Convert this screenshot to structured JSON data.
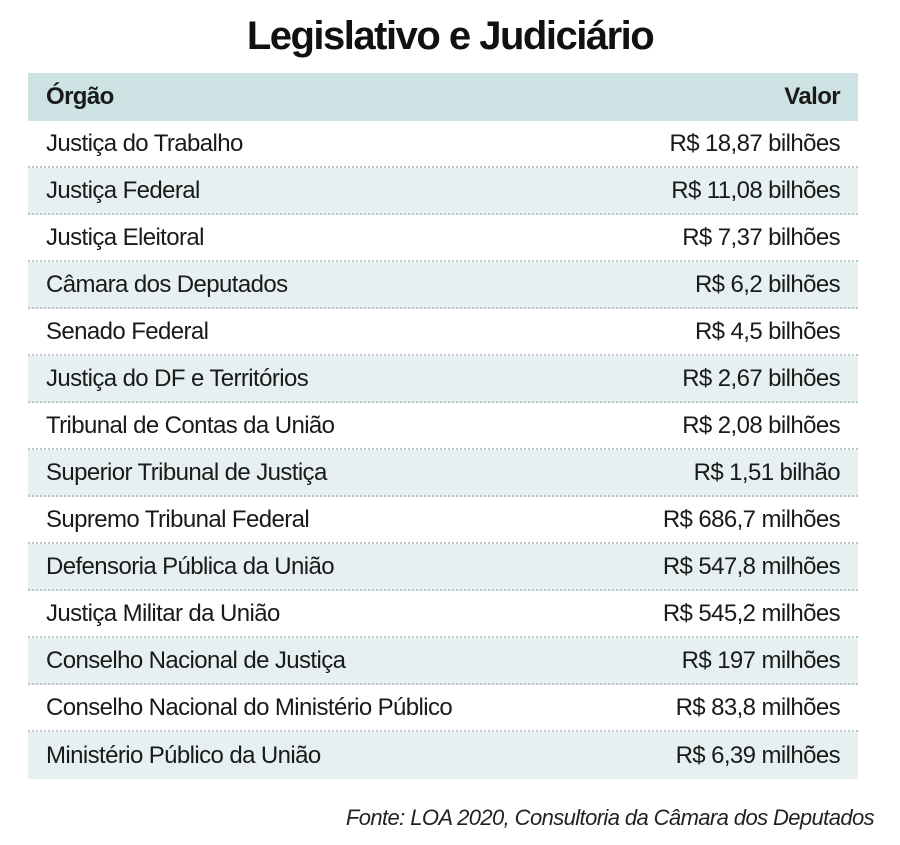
{
  "title": "Legislativo e Judiciário",
  "header": {
    "name": "Órgão",
    "value": "Valor"
  },
  "chart_data": {
    "type": "table",
    "title": "Legislativo e Judiciário",
    "columns": [
      "Órgão",
      "Valor"
    ],
    "rows": [
      {
        "name": "Justiça do Trabalho",
        "value": "R$ 18,87 bilhões"
      },
      {
        "name": "Justiça Federal",
        "value": "R$ 11,08 bilhões"
      },
      {
        "name": "Justiça Eleitoral",
        "value": "R$ 7,37 bilhões"
      },
      {
        "name": "Câmara dos Deputados",
        "value": "R$ 6,2 bilhões"
      },
      {
        "name": "Senado Federal",
        "value": "R$ 4,5 bilhões"
      },
      {
        "name": "Justiça do DF e Territórios",
        "value": "R$ 2,67 bilhões"
      },
      {
        "name": "Tribunal de Contas da União",
        "value": "R$ 2,08 bilhões"
      },
      {
        "name": "Superior Tribunal de Justiça",
        "value": "R$ 1,51 bilhão"
      },
      {
        "name": "Supremo Tribunal Federal",
        "value": "R$ 686,7 milhões"
      },
      {
        "name": "Defensoria Pública da União",
        "value": "R$ 547,8 milhões"
      },
      {
        "name": "Justiça Militar da União",
        "value": "R$ 545,2 milhões"
      },
      {
        "name": "Conselho Nacional de Justiça",
        "value": "R$ 197 milhões"
      },
      {
        "name": "Conselho Nacional do Ministério Público",
        "value": "R$ 83,8 milhões"
      },
      {
        "name": "Ministério Público da União",
        "value": "R$ 6,39 milhões"
      }
    ]
  },
  "source": "Fonte:  LOA 2020, Consultoria da Câmara dos Deputados",
  "colors": {
    "header_bg": "#cde2e2",
    "row_alt_bg": "#e6f0f0",
    "row_bg": "#ffffff"
  }
}
